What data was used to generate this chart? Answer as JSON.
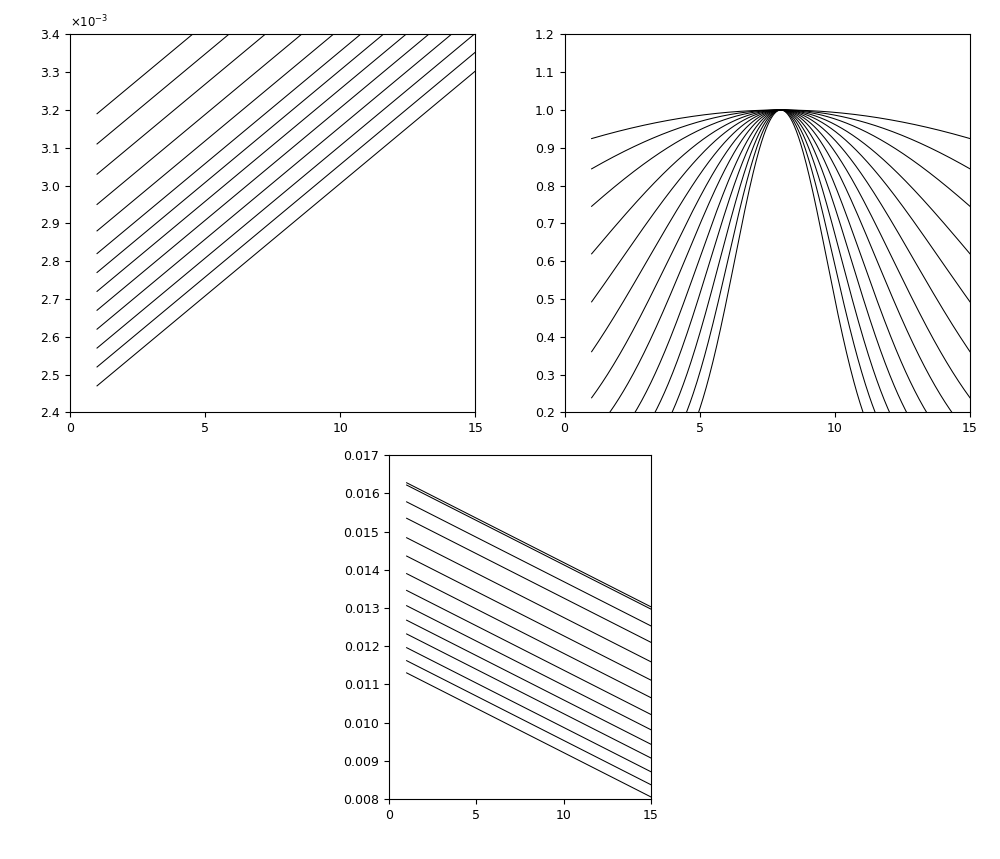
{
  "n_lines1": 13,
  "n_lines2": 13,
  "n_lines3": 14,
  "x_start": 1,
  "x_end": 15,
  "n_points": 500,
  "plot1": {
    "ylim": [
      0.0024,
      0.0034
    ],
    "ytick_vals": [
      2.4,
      2.5,
      2.6,
      2.7,
      2.8,
      2.9,
      3.0,
      3.1,
      3.2,
      3.3,
      3.4
    ],
    "xticks": [
      0,
      5,
      10,
      15
    ],
    "xlim": [
      0,
      15
    ],
    "y_intercepts_at_x1": [
      0.00247,
      0.00252,
      0.00257,
      0.00262,
      0.00267,
      0.00272,
      0.00277,
      0.00282,
      0.00288,
      0.00295,
      0.00303,
      0.00311,
      0.00319
    ],
    "slope": 5.95e-05
  },
  "plot2": {
    "ylim": [
      0.2,
      1.2
    ],
    "yticks": [
      0.2,
      0.3,
      0.4,
      0.5,
      0.6,
      0.7,
      0.8,
      0.9,
      1.0,
      1.1,
      1.2
    ],
    "xticks": [
      0,
      5,
      10,
      15
    ],
    "xlim": [
      0,
      15
    ],
    "n_lines": 13,
    "k_values": [
      0.15,
      0.22,
      0.29,
      0.37,
      0.45,
      0.54,
      0.64,
      0.75,
      0.88,
      1.02,
      1.18,
      1.36,
      1.56
    ]
  },
  "plot3": {
    "ylim": [
      0.008,
      0.017
    ],
    "yticks": [
      0.008,
      0.009,
      0.01,
      0.011,
      0.012,
      0.013,
      0.014,
      0.015,
      0.016,
      0.017
    ],
    "xticks": [
      0,
      5,
      10,
      15
    ],
    "xlim": [
      0,
      15
    ],
    "y_intercepts_at_x1": [
      0.0113,
      0.01162,
      0.01196,
      0.01232,
      0.01268,
      0.01306,
      0.01346,
      0.0139,
      0.01436,
      0.01484,
      0.01535,
      0.01578,
      0.01622,
      0.01628
    ],
    "slope": -0.000232
  },
  "line_color": "#000000",
  "line_width": 0.75,
  "bg_color": "#ffffff",
  "tick_fontsize": 9
}
